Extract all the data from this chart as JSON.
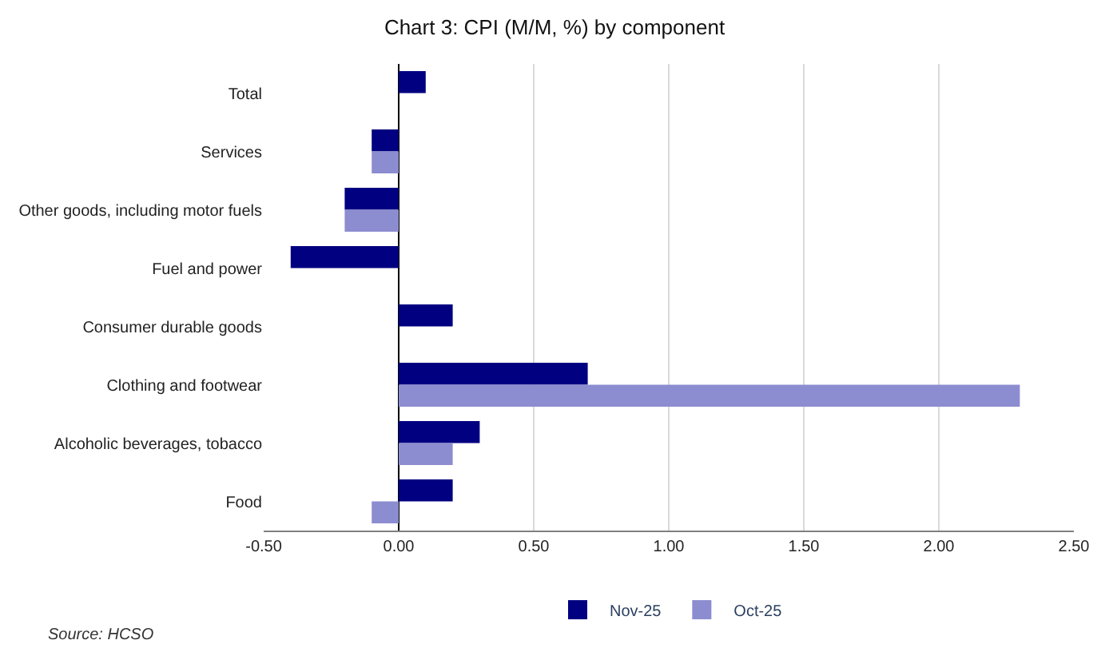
{
  "chart_data": {
    "type": "bar",
    "orientation": "horizontal",
    "title": "Chart 3: CPI (M/M, %) by component",
    "categories": [
      "Total",
      "Services",
      "Other goods, including motor fuels",
      "Fuel and power",
      "Consumer durable goods",
      "Clothing and footwear",
      "Alcoholic beverages, tobacco",
      "Food"
    ],
    "series": [
      {
        "name": "Nov-25",
        "color": "#000080",
        "values": [
          0.1,
          -0.1,
          -0.2,
          -0.4,
          0.2,
          0.7,
          0.3,
          0.2
        ]
      },
      {
        "name": "Oct-25",
        "color": "#8c8cd0",
        "values": [
          0,
          -0.1,
          -0.2,
          0,
          0,
          2.3,
          0.2,
          -0.1
        ]
      }
    ],
    "xlim": [
      -0.5,
      2.5
    ],
    "xticks": [
      {
        "value": -0.5,
        "label": "-0.50"
      },
      {
        "value": 0,
        "label": "0.00"
      },
      {
        "value": 0.5,
        "label": "0.50"
      },
      {
        "value": 1,
        "label": "1.00"
      },
      {
        "value": 1.5,
        "label": "1.50"
      },
      {
        "value": 2,
        "label": "2.00"
      },
      {
        "value": 2.5,
        "label": "2.50"
      }
    ],
    "grid": "x",
    "legend": "bottom",
    "annotations": [
      "Source: HCSO"
    ]
  }
}
